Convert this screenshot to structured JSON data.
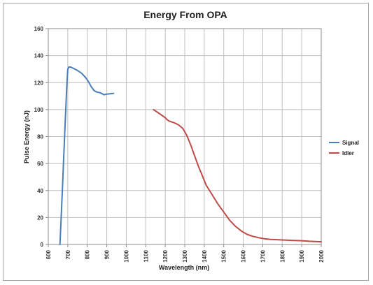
{
  "chart_data": {
    "type": "line",
    "title": "Energy From OPA",
    "xlabel": "Wavelength (nm)",
    "ylabel": "Pulse Energy (nJ)",
    "xlim": [
      600,
      2000
    ],
    "ylim": [
      0,
      160
    ],
    "xticks": [
      600,
      700,
      800,
      900,
      1000,
      1100,
      1200,
      1300,
      1400,
      1500,
      1600,
      1700,
      1800,
      1900,
      2000
    ],
    "yticks": [
      0,
      20,
      40,
      60,
      80,
      100,
      120,
      140,
      160
    ],
    "grid": true,
    "legend_position": "right",
    "series": [
      {
        "name": "Signal",
        "color": "#4a7ebb",
        "points": [
          [
            660,
            0
          ],
          [
            672,
            40
          ],
          [
            685,
            85
          ],
          [
            695,
            118
          ],
          [
            700,
            130
          ],
          [
            705,
            131.5
          ],
          [
            715,
            131.5
          ],
          [
            730,
            130.5
          ],
          [
            750,
            129
          ],
          [
            770,
            127
          ],
          [
            790,
            124
          ],
          [
            805,
            121
          ],
          [
            820,
            117
          ],
          [
            835,
            114
          ],
          [
            850,
            113
          ],
          [
            865,
            112.5
          ],
          [
            880,
            111.5
          ],
          [
            885,
            111
          ],
          [
            900,
            111.5
          ],
          [
            920,
            111.8
          ],
          [
            935,
            112
          ]
        ]
      },
      {
        "name": "Idler",
        "color": "#be4b48",
        "points": [
          [
            1140,
            100
          ],
          [
            1160,
            98
          ],
          [
            1180,
            96
          ],
          [
            1200,
            94
          ],
          [
            1210,
            92.5
          ],
          [
            1220,
            91.5
          ],
          [
            1250,
            90
          ],
          [
            1270,
            88.5
          ],
          [
            1290,
            86
          ],
          [
            1310,
            81
          ],
          [
            1330,
            74
          ],
          [
            1350,
            66
          ],
          [
            1370,
            58
          ],
          [
            1390,
            51
          ],
          [
            1410,
            44
          ],
          [
            1440,
            37
          ],
          [
            1470,
            30
          ],
          [
            1500,
            24
          ],
          [
            1530,
            18
          ],
          [
            1560,
            13.5
          ],
          [
            1590,
            10
          ],
          [
            1620,
            7.5
          ],
          [
            1650,
            6
          ],
          [
            1680,
            5
          ],
          [
            1710,
            4.2
          ],
          [
            1740,
            3.8
          ],
          [
            1780,
            3.5
          ],
          [
            1820,
            3.2
          ],
          [
            1860,
            3.0
          ],
          [
            1900,
            2.8
          ],
          [
            1940,
            2.4
          ],
          [
            2000,
            2.0
          ]
        ]
      }
    ]
  }
}
